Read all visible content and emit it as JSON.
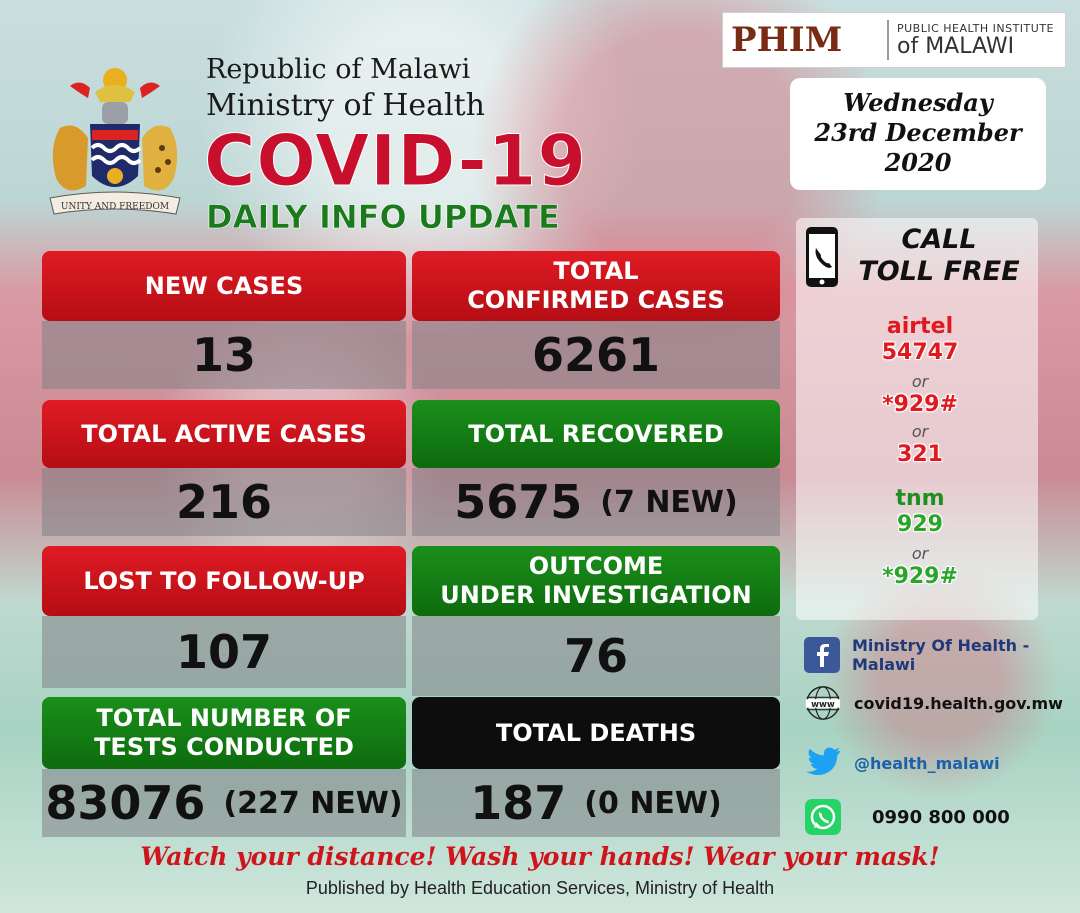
{
  "header": {
    "republic": "Republic of Malawi",
    "ministry": "Ministry of Health",
    "title": "COVID-19",
    "subtitle": "DAILY INFO UPDATE",
    "coat_motto": "UNITY AND FREEDOM"
  },
  "phim": {
    "logo": "PHIM",
    "line1": "PUBLIC HEALTH INSTITUTE",
    "line2": "of MALAWI"
  },
  "date": {
    "weekday": "Wednesday",
    "day_month": "23rd December",
    "year": "2020"
  },
  "stats": {
    "new_cases": {
      "label": "NEW CASES",
      "value": "13"
    },
    "total_confirmed": {
      "label_line1": "TOTAL",
      "label_line2": "CONFIRMED CASES",
      "value": "6261"
    },
    "active": {
      "label": "TOTAL ACTIVE CASES",
      "value": "216"
    },
    "recovered": {
      "label": "TOTAL RECOVERED",
      "value": "5675",
      "new": "(7 NEW)"
    },
    "lost": {
      "label": "LOST TO FOLLOW-UP",
      "value": "107"
    },
    "outcome": {
      "label_line1": "OUTCOME",
      "label_line2": "UNDER INVESTIGATION",
      "value": "76"
    },
    "tests": {
      "label_line1": "TOTAL NUMBER OF",
      "label_line2": "TESTS CONDUCTED",
      "value": "83076",
      "new": "(227 NEW)"
    },
    "deaths": {
      "label": "TOTAL DEATHS",
      "value": "187",
      "new": "(0 NEW)"
    }
  },
  "call": {
    "title_line1": "CALL",
    "title_line2": "TOLL FREE",
    "airtel": "airtel",
    "airtel_numbers": [
      "54747",
      "*929#",
      "321"
    ],
    "tnm": "tnm",
    "tnm_numbers": [
      "929",
      "*929#"
    ],
    "or": "or"
  },
  "social": {
    "facebook": "Ministry Of Health - Malawi",
    "web": "covid19.health.gov.mw",
    "twitter": "@health_malawi",
    "whatsapp": "0990 800 000",
    "web_icon_text": "www"
  },
  "footer": {
    "slogan": "Watch your distance! Wash your hands! Wear your mask!",
    "published": "Published by Health Education Services, Ministry of Health"
  },
  "colors": {
    "red": "#c8102e",
    "green": "#1b7a1b",
    "black": "#0d0d0d",
    "facebook": "#3b5998",
    "twitter": "#1da1f2",
    "whatsapp": "#25d366"
  }
}
